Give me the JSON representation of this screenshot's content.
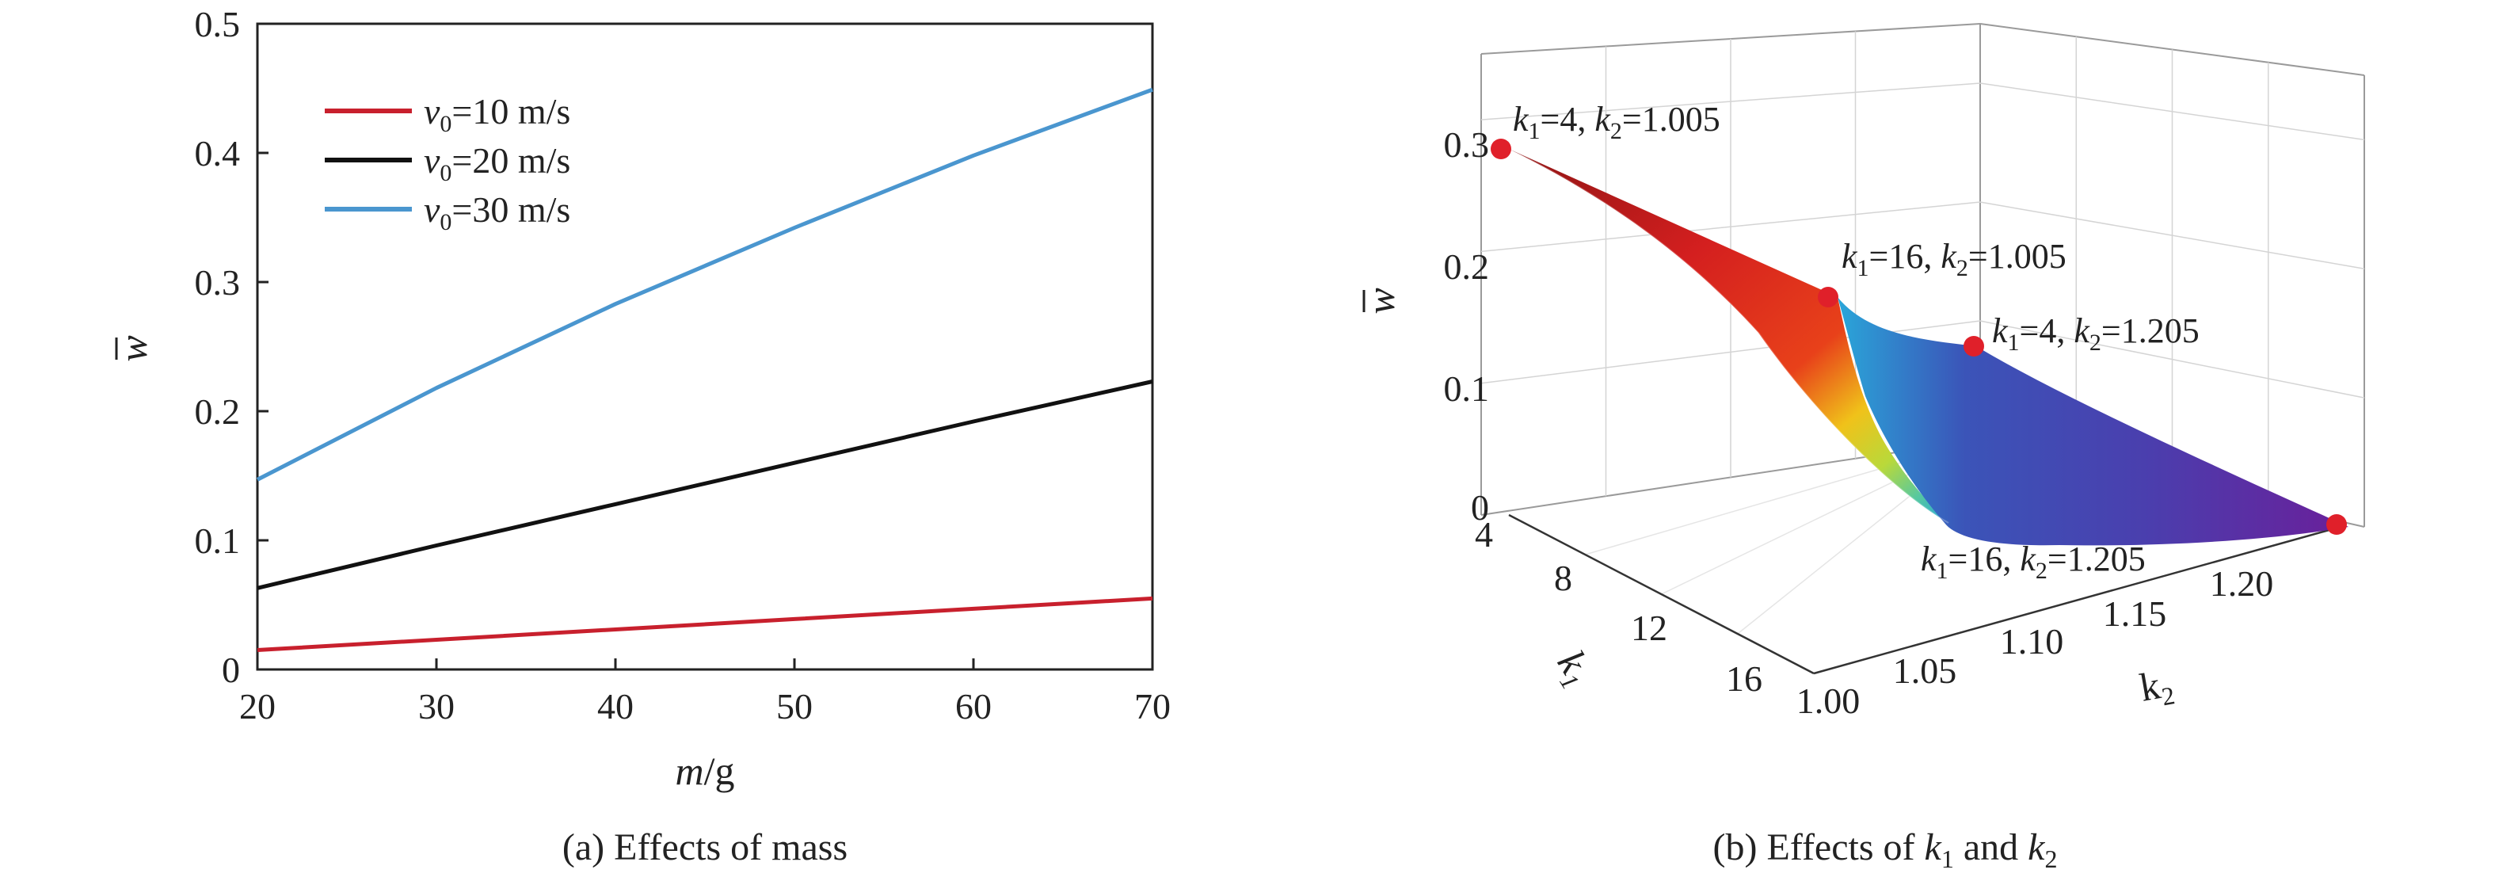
{
  "chart_data": [
    {
      "type": "line",
      "caption": "(a) Effects of mass",
      "xlabel": {
        "var": "m",
        "unit": "/g"
      },
      "ylabel": "w",
      "xlim": [
        20,
        70
      ],
      "ylim": [
        0,
        0.5
      ],
      "xticks": [
        20,
        30,
        40,
        50,
        60,
        70
      ],
      "yticks": [
        0,
        0.1,
        0.2,
        0.3,
        0.4,
        0.5
      ],
      "ytick_labels": [
        "0",
        "0.1",
        "0.2",
        "0.3",
        "0.4",
        "0.5"
      ],
      "grid": false,
      "legend_position": "top-left",
      "series": [
        {
          "name": "10 m/s",
          "legend_var": "v",
          "legend_sub": "0",
          "color": "#c8202d",
          "x": [
            20,
            30,
            40,
            50,
            60,
            70
          ],
          "y": [
            0.015,
            0.023,
            0.031,
            0.039,
            0.047,
            0.055
          ]
        },
        {
          "name": "20 m/s",
          "legend_var": "v",
          "legend_sub": "0",
          "color": "#111111",
          "x": [
            20,
            30,
            40,
            50,
            60,
            70
          ],
          "y": [
            0.063,
            0.096,
            0.128,
            0.16,
            0.192,
            0.223
          ]
        },
        {
          "name": "30 m/s",
          "legend_var": "v",
          "legend_sub": "0",
          "color": "#4a96cf",
          "x": [
            20,
            30,
            40,
            50,
            60,
            70
          ],
          "y": [
            0.147,
            0.218,
            0.283,
            0.342,
            0.398,
            0.449
          ]
        }
      ]
    },
    {
      "type": "surface3d",
      "caption_prefix": "(b) Effects of ",
      "caption_mid": " and ",
      "xlabel": "k2",
      "ylabel": "k1",
      "zlabel": "w",
      "x_ticks": [
        "1.00",
        "1.05",
        "1.10",
        "1.15",
        "1.20"
      ],
      "y_ticks": [
        "4",
        "8",
        "12",
        "16"
      ],
      "z_ticks": [
        "0",
        "0.1",
        "0.2",
        "0.3"
      ],
      "xlim": [
        1.0,
        1.205
      ],
      "ylim": [
        4,
        16
      ],
      "zlim": [
        0,
        0.3
      ],
      "corner_points": [
        {
          "k1": 4,
          "k2": 1.005,
          "w": 0.28
        },
        {
          "k1": 16,
          "k2": 1.005,
          "w": 0.17
        },
        {
          "k1": 4,
          "k2": 1.205,
          "w": 0.125
        },
        {
          "k1": 16,
          "k2": 1.205,
          "w": 0.0
        }
      ],
      "annotations": [
        {
          "k1": "4",
          "k2": "1.005"
        },
        {
          "k1": "16",
          "k2": "1.005"
        },
        {
          "k1": "4",
          "k2": "1.205"
        },
        {
          "k1": "16",
          "k2": "1.205"
        }
      ],
      "colormap": [
        "#5e1f93",
        "#3b54b8",
        "#2aa6d9",
        "#56c8a0",
        "#b9d93a",
        "#f0c21a",
        "#e8411a",
        "#d41f1f",
        "#8e1414"
      ]
    }
  ]
}
